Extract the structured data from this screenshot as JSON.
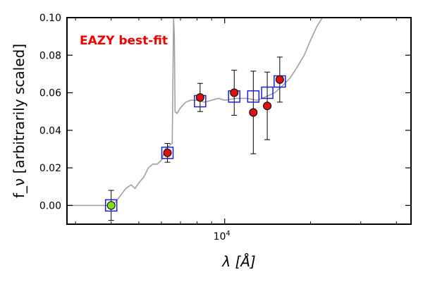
{
  "chart_data": {
    "type": "scatter",
    "xscale": "log",
    "xlim": [
      2800,
      45000
    ],
    "ylim": [
      -0.01,
      0.1
    ],
    "xlabel": "λ [Å]",
    "ylabel": "f_ν [arbitrarily scaled]",
    "x_tick_label_major": "10⁴",
    "x_tick_label_base": "10",
    "x_tick_label_exp": "4",
    "y_ticks": [
      0.0,
      0.02,
      0.04,
      0.06,
      0.08,
      0.1
    ],
    "y_tick_labels": [
      "0.00",
      "0.02",
      "0.04",
      "0.06",
      "0.08",
      "0.10"
    ],
    "annotation": {
      "text": "EAZY best-fit",
      "color": "#ee0000"
    },
    "colors": {
      "sed": "#a0a0a0",
      "model_box": "#1f1fd1",
      "obs_fill": "#dd1111",
      "lower_limit_fill": "#7fe01f",
      "errorbar": "#000000",
      "frame": "#000000"
    },
    "sed_curve": [
      [
        2800,
        0.0
      ],
      [
        3500,
        0.0
      ],
      [
        3900,
        0.0
      ],
      [
        4100,
        0.001
      ],
      [
        4300,
        0.005
      ],
      [
        4500,
        0.009
      ],
      [
        4700,
        0.011
      ],
      [
        4850,
        0.009
      ],
      [
        5000,
        0.012
      ],
      [
        5200,
        0.015
      ],
      [
        5400,
        0.02
      ],
      [
        5600,
        0.022
      ],
      [
        5800,
        0.022
      ],
      [
        6000,
        0.024
      ],
      [
        6200,
        0.03
      ],
      [
        6400,
        0.032
      ],
      [
        6550,
        0.033
      ],
      [
        6620,
        0.1
      ],
      [
        6660,
        0.09
      ],
      [
        6700,
        0.05
      ],
      [
        6800,
        0.049
      ],
      [
        7000,
        0.052
      ],
      [
        7300,
        0.055
      ],
      [
        7600,
        0.056
      ],
      [
        8000,
        0.056
      ],
      [
        8500,
        0.055
      ],
      [
        9000,
        0.056
      ],
      [
        9500,
        0.057
      ],
      [
        10000,
        0.056
      ],
      [
        11000,
        0.057
      ],
      [
        12000,
        0.057
      ],
      [
        13000,
        0.056
      ],
      [
        14000,
        0.058
      ],
      [
        15000,
        0.06
      ],
      [
        16000,
        0.064
      ],
      [
        17000,
        0.068
      ],
      [
        18000,
        0.074
      ],
      [
        19000,
        0.08
      ],
      [
        20000,
        0.088
      ],
      [
        21000,
        0.095
      ],
      [
        22000,
        0.1
      ]
    ],
    "model_points": [
      {
        "x": 4000,
        "y": 0.0
      },
      {
        "x": 6300,
        "y": 0.028
      },
      {
        "x": 8200,
        "y": 0.0555
      },
      {
        "x": 10800,
        "y": 0.058
      },
      {
        "x": 12600,
        "y": 0.058
      },
      {
        "x": 14100,
        "y": 0.06
      },
      {
        "x": 15600,
        "y": 0.066
      }
    ],
    "observed_points": [
      {
        "x": 4000,
        "y": 0.0,
        "yerr_low": 0.008,
        "yerr_high": 0.008,
        "marker": "lower_limit"
      },
      {
        "x": 6300,
        "y": 0.028,
        "yerr_low": 0.005,
        "yerr_high": 0.005
      },
      {
        "x": 8200,
        "y": 0.0575,
        "yerr_low": 0.0075,
        "yerr_high": 0.0075
      },
      {
        "x": 10800,
        "y": 0.06,
        "yerr_low": 0.012,
        "yerr_high": 0.012
      },
      {
        "x": 12600,
        "y": 0.0495,
        "yerr_low": 0.022,
        "yerr_high": 0.022
      },
      {
        "x": 14100,
        "y": 0.053,
        "yerr_low": 0.018,
        "yerr_high": 0.018
      },
      {
        "x": 15600,
        "y": 0.067,
        "yerr_low": 0.012,
        "yerr_high": 0.012
      }
    ],
    "grid": false
  }
}
